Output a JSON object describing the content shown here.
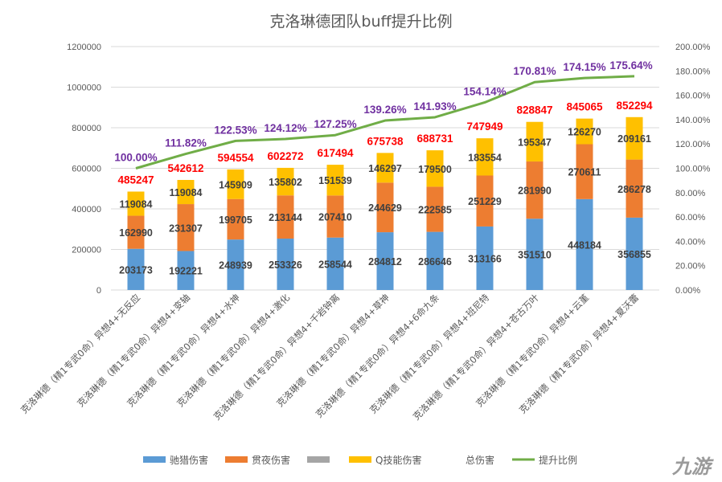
{
  "chart_data": {
    "type": "bar",
    "stacked": true,
    "title": "克洛琳德团队buff提升比例",
    "categories": [
      "克洛琳德（精1专武0命）异想4+无反应",
      "克洛琳德（精1专武0命）异想4+变轴",
      "克洛琳德（精1专武0命）异想4+水神",
      "克洛琳德（精1专武0命）异想4+激化",
      "克洛琳德（精1专武0命）异想4+千岩钟离",
      "克洛琳德（精1专武0命）异想4+草神",
      "克洛琳德（精1专武0命）异想4+6命九条",
      "克洛琳德（精1专武0命）异想4+班尼特",
      "克洛琳德（精1专武0命）异想4+苍古万叶",
      "克洛琳德（精1专武0命）异想4+云堇",
      "克洛琳德（精1专武0命）异想4+夏沃蕾"
    ],
    "series": [
      {
        "name": "驰猎伤害",
        "color": "#5b9bd5",
        "values": [
          203173,
          192221,
          248939,
          253326,
          258544,
          284812,
          286646,
          313166,
          351510,
          448184,
          356855
        ]
      },
      {
        "name": "贯夜伤害",
        "color": "#ed7d31",
        "values": [
          162990,
          231307,
          199705,
          213144,
          207410,
          244629,
          222585,
          251229,
          281990,
          270611,
          286278
        ]
      },
      {
        "name": "",
        "color": "#a5a5a5",
        "values": [
          0,
          0,
          0,
          0,
          0,
          0,
          0,
          0,
          0,
          0,
          0
        ]
      },
      {
        "name": "Q技能伤害",
        "color": "#ffc000",
        "values": [
          119084,
          119084,
          145909,
          135802,
          151539,
          146297,
          179500,
          183554,
          195347,
          126270,
          209161
        ]
      }
    ],
    "totals_series": {
      "name": "总伤害",
      "color": "#ff0000",
      "values": [
        485247,
        542612,
        594554,
        602272,
        617494,
        675738,
        688731,
        747949,
        828847,
        845065,
        852294
      ]
    },
    "line_series": {
      "name": "提升比例",
      "color": "#70ad47",
      "label_color": "#7030a0",
      "values": [
        100.0,
        111.82,
        122.53,
        124.12,
        127.25,
        139.26,
        141.93,
        154.14,
        170.81,
        174.15,
        175.64
      ],
      "labels": [
        "100.00%",
        "111.82%",
        "122.53%",
        "124.12%",
        "127.25%",
        "139.26%",
        "141.93%",
        "154.14%",
        "170.81%",
        "174.15%",
        "175.64%"
      ]
    },
    "ylim": [
      0,
      1200000
    ],
    "y_ticks": [
      "0",
      "200000",
      "400000",
      "600000",
      "800000",
      "1000000",
      "1200000"
    ],
    "y2lim": [
      0,
      200
    ],
    "y2_ticks": [
      "0.00%",
      "20.00%",
      "40.00%",
      "60.00%",
      "80.00%",
      "100.00%",
      "120.00%",
      "140.00%",
      "160.00%",
      "180.00%",
      "200.00%"
    ],
    "legend": [
      {
        "name": "驰猎伤害",
        "color": "#5b9bd5",
        "kind": "box"
      },
      {
        "name": "贯夜伤害",
        "color": "#ed7d31",
        "kind": "box"
      },
      {
        "name": "",
        "color": "#a5a5a5",
        "kind": "box"
      },
      {
        "name": "Q技能伤害",
        "color": "#ffc000",
        "kind": "box"
      },
      {
        "name": "总伤害",
        "color": "none",
        "kind": "none"
      },
      {
        "name": "提升比例",
        "color": "#70ad47",
        "kind": "line"
      }
    ],
    "legend_position": "bottom"
  },
  "watermark": "九游"
}
